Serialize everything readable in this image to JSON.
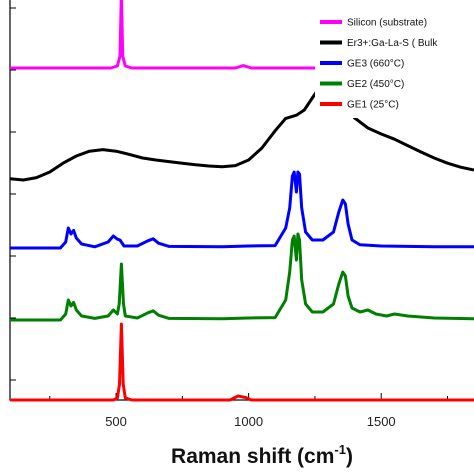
{
  "chart_data": {
    "type": "line",
    "xlabel": "Raman shift (cm",
    "xlabel_sup": "-1",
    "xlabel_close": ")",
    "xlim": [
      100,
      1850
    ],
    "x_ticks": [
      500,
      1000,
      1500
    ],
    "x_tick_labels": [
      "500",
      "1000",
      "1500"
    ],
    "ylim": [
      0,
      100
    ],
    "grid": false,
    "legend_position": "top-right",
    "series": [
      {
        "name": "Silicon (substrate)",
        "color": "#ff00ff",
        "offset": 83,
        "points": [
          [
            100,
            0
          ],
          [
            480,
            0
          ],
          [
            505,
            0.5
          ],
          [
            515,
            3
          ],
          [
            520,
            19
          ],
          [
            525,
            3
          ],
          [
            535,
            0.5
          ],
          [
            560,
            0
          ],
          [
            950,
            0
          ],
          [
            980,
            0.6
          ],
          [
            1010,
            0
          ],
          [
            1850,
            0
          ]
        ]
      },
      {
        "name": "Er3+:Ga-La-S ( Bulk",
        "color": "#000000",
        "offset": 55,
        "points": [
          [
            100,
            0.3
          ],
          [
            150,
            0
          ],
          [
            200,
            0.6
          ],
          [
            250,
            2
          ],
          [
            300,
            4.2
          ],
          [
            350,
            6
          ],
          [
            400,
            7.2
          ],
          [
            450,
            7.6
          ],
          [
            500,
            7.2
          ],
          [
            550,
            6.4
          ],
          [
            600,
            5.5
          ],
          [
            650,
            5
          ],
          [
            700,
            4.6
          ],
          [
            750,
            4.2
          ],
          [
            800,
            3.8
          ],
          [
            850,
            3.5
          ],
          [
            900,
            3.3
          ],
          [
            950,
            3.6
          ],
          [
            1000,
            5
          ],
          [
            1050,
            8
          ],
          [
            1100,
            12.3
          ],
          [
            1140,
            15.4
          ],
          [
            1180,
            16.2
          ],
          [
            1210,
            17.5
          ],
          [
            1240,
            20.5
          ],
          [
            1270,
            23.4
          ],
          [
            1290,
            24
          ],
          [
            1310,
            22.5
          ],
          [
            1350,
            19
          ],
          [
            1400,
            15.5
          ],
          [
            1450,
            13
          ],
          [
            1500,
            11.5
          ],
          [
            1550,
            10.2
          ],
          [
            1600,
            8.6
          ],
          [
            1650,
            7
          ],
          [
            1700,
            5.5
          ],
          [
            1750,
            4.2
          ],
          [
            1800,
            3.2
          ],
          [
            1850,
            2.5
          ]
        ]
      },
      {
        "name": "GE3 (660°C)",
        "color": "#0000ff",
        "offset": 38,
        "points": [
          [
            100,
            0
          ],
          [
            290,
            0
          ],
          [
            310,
            1.5
          ],
          [
            320,
            5
          ],
          [
            330,
            3.5
          ],
          [
            340,
            4.4
          ],
          [
            350,
            2.5
          ],
          [
            370,
            1
          ],
          [
            420,
            0.3
          ],
          [
            470,
            1.5
          ],
          [
            490,
            3
          ],
          [
            505,
            2.2
          ],
          [
            515,
            2
          ],
          [
            530,
            0.5
          ],
          [
            580,
            0.5
          ],
          [
            620,
            1.8
          ],
          [
            640,
            2.3
          ],
          [
            660,
            1.2
          ],
          [
            700,
            0.4
          ],
          [
            900,
            0.3
          ],
          [
            1000,
            0.5
          ],
          [
            1100,
            0.6
          ],
          [
            1140,
            5
          ],
          [
            1155,
            10
          ],
          [
            1165,
            18
          ],
          [
            1172,
            19
          ],
          [
            1180,
            14
          ],
          [
            1186,
            19
          ],
          [
            1192,
            18.5
          ],
          [
            1200,
            10
          ],
          [
            1215,
            4
          ],
          [
            1240,
            2
          ],
          [
            1280,
            2
          ],
          [
            1320,
            4
          ],
          [
            1340,
            9
          ],
          [
            1355,
            12
          ],
          [
            1365,
            11
          ],
          [
            1375,
            6
          ],
          [
            1390,
            2
          ],
          [
            1420,
            0.8
          ],
          [
            1500,
            0.5
          ],
          [
            1600,
            0.4
          ],
          [
            1700,
            0.3
          ],
          [
            1850,
            0.3
          ]
        ]
      },
      {
        "name": "GE2 (450°C)",
        "color": "#008000",
        "offset": 20,
        "points": [
          [
            100,
            0
          ],
          [
            290,
            0
          ],
          [
            310,
            1.5
          ],
          [
            320,
            5
          ],
          [
            330,
            3.5
          ],
          [
            340,
            4.4
          ],
          [
            350,
            2.5
          ],
          [
            370,
            1
          ],
          [
            420,
            0.4
          ],
          [
            470,
            1
          ],
          [
            490,
            2.5
          ],
          [
            505,
            1.5
          ],
          [
            512,
            4
          ],
          [
            520,
            14
          ],
          [
            528,
            4
          ],
          [
            535,
            1
          ],
          [
            580,
            0.5
          ],
          [
            620,
            1.8
          ],
          [
            640,
            2.3
          ],
          [
            660,
            1.2
          ],
          [
            700,
            0.4
          ],
          [
            900,
            0.3
          ],
          [
            1000,
            0.5
          ],
          [
            1100,
            0.6
          ],
          [
            1140,
            5
          ],
          [
            1155,
            12
          ],
          [
            1165,
            20
          ],
          [
            1172,
            21
          ],
          [
            1180,
            15
          ],
          [
            1186,
            21.5
          ],
          [
            1192,
            20
          ],
          [
            1200,
            10
          ],
          [
            1215,
            4
          ],
          [
            1240,
            2
          ],
          [
            1280,
            2
          ],
          [
            1320,
            4
          ],
          [
            1340,
            9
          ],
          [
            1355,
            12
          ],
          [
            1365,
            11
          ],
          [
            1375,
            6
          ],
          [
            1390,
            3
          ],
          [
            1420,
            2
          ],
          [
            1450,
            2.5
          ],
          [
            1480,
            1.5
          ],
          [
            1520,
            1
          ],
          [
            1550,
            1.5
          ],
          [
            1600,
            1
          ],
          [
            1700,
            0.5
          ],
          [
            1850,
            0.3
          ]
        ]
      },
      {
        "name": "GE1 (25°C)",
        "color": "#ff0000",
        "offset": 0,
        "points": [
          [
            100,
            0
          ],
          [
            490,
            0
          ],
          [
            505,
            0.5
          ],
          [
            513,
            4
          ],
          [
            520,
            19
          ],
          [
            527,
            4
          ],
          [
            535,
            0.5
          ],
          [
            560,
            0
          ],
          [
            930,
            0
          ],
          [
            960,
            1
          ],
          [
            990,
            0.6
          ],
          [
            1010,
            0
          ],
          [
            1850,
            0
          ]
        ]
      }
    ]
  }
}
